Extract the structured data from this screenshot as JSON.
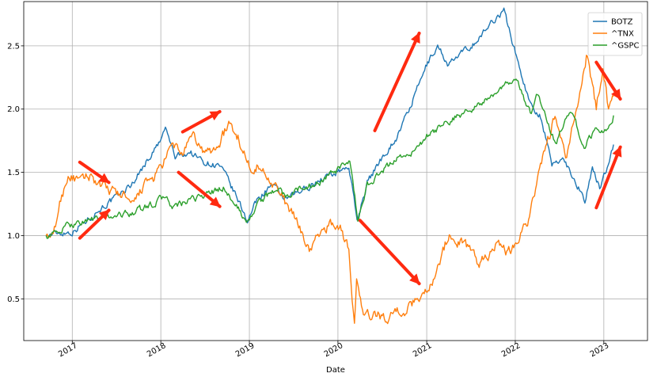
{
  "chart_data": {
    "type": "line",
    "title": "",
    "xlabel": "Date",
    "ylabel": "",
    "xlim": [
      "2016-06-15",
      "2023-06-30"
    ],
    "ylim": [
      0.17,
      2.85
    ],
    "grid": true,
    "legend_position": "top-right",
    "x_ticks": [
      "2017",
      "2018",
      "2019",
      "2020",
      "2021",
      "2022",
      "2023"
    ],
    "y_ticks": [
      "0.5",
      "1.0",
      "1.5",
      "2.0",
      "2.5"
    ],
    "series": [
      {
        "name": "BOTZ",
        "color": "#1f77b4",
        "points": [
          [
            "2016-09-15",
            1.0
          ],
          [
            "2016-11-01",
            1.02
          ],
          [
            "2017-01-01",
            1.03
          ],
          [
            "2017-03-01",
            1.12
          ],
          [
            "2017-05-01",
            1.22
          ],
          [
            "2017-07-01",
            1.3
          ],
          [
            "2017-09-01",
            1.4
          ],
          [
            "2017-11-01",
            1.58
          ],
          [
            "2018-01-01",
            1.75
          ],
          [
            "2018-01-20",
            1.85
          ],
          [
            "2018-03-01",
            1.62
          ],
          [
            "2018-05-01",
            1.66
          ],
          [
            "2018-07-01",
            1.58
          ],
          [
            "2018-09-01",
            1.55
          ],
          [
            "2018-10-01",
            1.45
          ],
          [
            "2018-11-15",
            1.28
          ],
          [
            "2018-12-24",
            1.12
          ],
          [
            "2019-02-01",
            1.28
          ],
          [
            "2019-04-01",
            1.4
          ],
          [
            "2019-06-01",
            1.28
          ],
          [
            "2019-08-01",
            1.35
          ],
          [
            "2019-10-01",
            1.42
          ],
          [
            "2019-12-01",
            1.48
          ],
          [
            "2020-02-15",
            1.55
          ],
          [
            "2020-03-20",
            1.12
          ],
          [
            "2020-05-01",
            1.42
          ],
          [
            "2020-07-01",
            1.62
          ],
          [
            "2020-09-01",
            1.78
          ],
          [
            "2020-11-01",
            2.05
          ],
          [
            "2021-01-01",
            2.35
          ],
          [
            "2021-02-15",
            2.5
          ],
          [
            "2021-04-01",
            2.35
          ],
          [
            "2021-06-01",
            2.45
          ],
          [
            "2021-08-01",
            2.55
          ],
          [
            "2021-10-01",
            2.7
          ],
          [
            "2021-11-15",
            2.78
          ],
          [
            "2022-01-01",
            2.45
          ],
          [
            "2022-03-01",
            2.05
          ],
          [
            "2022-04-15",
            1.95
          ],
          [
            "2022-06-01",
            1.55
          ],
          [
            "2022-07-15",
            1.62
          ],
          [
            "2022-09-01",
            1.45
          ],
          [
            "2022-10-15",
            1.28
          ],
          [
            "2022-11-15",
            1.52
          ],
          [
            "2022-12-15",
            1.38
          ],
          [
            "2023-01-15",
            1.55
          ],
          [
            "2023-02-10",
            1.72
          ]
        ]
      },
      {
        "name": "^TNX",
        "color": "#ff7f0e",
        "points": [
          [
            "2016-09-15",
            1.0
          ],
          [
            "2016-10-15",
            0.98
          ],
          [
            "2016-11-10",
            1.25
          ],
          [
            "2016-12-15",
            1.48
          ],
          [
            "2017-02-01",
            1.42
          ],
          [
            "2017-03-15",
            1.48
          ],
          [
            "2017-05-01",
            1.38
          ],
          [
            "2017-06-15",
            1.35
          ],
          [
            "2017-08-01",
            1.32
          ],
          [
            "2017-09-08",
            1.22
          ],
          [
            "2017-10-15",
            1.38
          ],
          [
            "2017-12-01",
            1.45
          ],
          [
            "2018-01-15",
            1.58
          ],
          [
            "2018-02-20",
            1.72
          ],
          [
            "2018-04-01",
            1.65
          ],
          [
            "2018-05-15",
            1.78
          ],
          [
            "2018-07-01",
            1.65
          ],
          [
            "2018-08-15",
            1.68
          ],
          [
            "2018-10-08",
            1.88
          ],
          [
            "2018-11-15",
            1.78
          ],
          [
            "2018-12-31",
            1.55
          ],
          [
            "2019-02-01",
            1.55
          ],
          [
            "2019-04-01",
            1.45
          ],
          [
            "2019-06-01",
            1.25
          ],
          [
            "2019-08-01",
            1.05
          ],
          [
            "2019-09-05",
            0.88
          ],
          [
            "2019-10-15",
            1.0
          ],
          [
            "2019-12-01",
            1.1
          ],
          [
            "2020-01-15",
            1.05
          ],
          [
            "2020-02-15",
            0.88
          ],
          [
            "2020-03-09",
            0.3
          ],
          [
            "2020-03-18",
            0.65
          ],
          [
            "2020-04-15",
            0.35
          ],
          [
            "2020-06-01",
            0.38
          ],
          [
            "2020-07-15",
            0.35
          ],
          [
            "2020-09-01",
            0.4
          ],
          [
            "2020-10-15",
            0.42
          ],
          [
            "2020-12-01",
            0.52
          ],
          [
            "2021-01-15",
            0.6
          ],
          [
            "2021-02-15",
            0.75
          ],
          [
            "2021-03-31",
            1.0
          ],
          [
            "2021-05-15",
            0.95
          ],
          [
            "2021-07-01",
            0.9
          ],
          [
            "2021-08-01",
            0.78
          ],
          [
            "2021-09-15",
            0.85
          ],
          [
            "2021-10-20",
            0.98
          ],
          [
            "2021-12-01",
            0.85
          ],
          [
            "2022-01-15",
            1.0
          ],
          [
            "2022-03-01",
            1.15
          ],
          [
            "2022-04-15",
            1.55
          ],
          [
            "2022-06-14",
            1.95
          ],
          [
            "2022-08-01",
            1.6
          ],
          [
            "2022-09-15",
            2.05
          ],
          [
            "2022-10-21",
            2.42
          ],
          [
            "2022-11-15",
            2.2
          ],
          [
            "2022-12-01",
            2.0
          ],
          [
            "2022-12-28",
            2.35
          ],
          [
            "2023-01-20",
            2.0
          ],
          [
            "2023-02-10",
            2.1
          ]
        ]
      },
      {
        "name": "^GSPC",
        "color": "#2ca02c",
        "points": [
          [
            "2016-09-15",
            1.0
          ],
          [
            "2016-11-01",
            1.02
          ],
          [
            "2016-12-15",
            1.08
          ],
          [
            "2017-03-01",
            1.12
          ],
          [
            "2017-06-01",
            1.15
          ],
          [
            "2017-09-01",
            1.18
          ],
          [
            "2017-12-01",
            1.25
          ],
          [
            "2018-01-26",
            1.32
          ],
          [
            "2018-02-08",
            1.22
          ],
          [
            "2018-04-01",
            1.25
          ],
          [
            "2018-06-01",
            1.3
          ],
          [
            "2018-09-20",
            1.38
          ],
          [
            "2018-10-15",
            1.3
          ],
          [
            "2018-12-24",
            1.1
          ],
          [
            "2019-02-01",
            1.25
          ],
          [
            "2019-05-01",
            1.38
          ],
          [
            "2019-06-03",
            1.3
          ],
          [
            "2019-08-01",
            1.38
          ],
          [
            "2019-10-01",
            1.4
          ],
          [
            "2020-01-01",
            1.52
          ],
          [
            "2020-02-19",
            1.58
          ],
          [
            "2020-03-23",
            1.12
          ],
          [
            "2020-05-01",
            1.4
          ],
          [
            "2020-07-01",
            1.5
          ],
          [
            "2020-09-01",
            1.62
          ],
          [
            "2020-11-01",
            1.65
          ],
          [
            "2021-01-01",
            1.78
          ],
          [
            "2021-04-01",
            1.9
          ],
          [
            "2021-07-01",
            2.0
          ],
          [
            "2021-10-01",
            2.1
          ],
          [
            "2021-12-31",
            2.25
          ],
          [
            "2022-03-08",
            1.95
          ],
          [
            "2022-03-29",
            2.15
          ],
          [
            "2022-06-16",
            1.72
          ],
          [
            "2022-08-16",
            2.0
          ],
          [
            "2022-10-12",
            1.7
          ],
          [
            "2022-12-01",
            1.85
          ],
          [
            "2023-01-01",
            1.8
          ],
          [
            "2023-02-10",
            1.95
          ]
        ]
      }
    ],
    "annotations": [
      {
        "type": "arrow",
        "color": "#ff2a10",
        "from": [
          "2017-02-01",
          1.58
        ],
        "to": [
          "2017-06-01",
          1.42
        ]
      },
      {
        "type": "arrow",
        "color": "#ff2a10",
        "from": [
          "2017-02-01",
          0.98
        ],
        "to": [
          "2017-06-01",
          1.2
        ]
      },
      {
        "type": "arrow",
        "color": "#ff2a10",
        "from": [
          "2018-04-01",
          1.82
        ],
        "to": [
          "2018-09-01",
          1.98
        ]
      },
      {
        "type": "arrow",
        "color": "#ff2a10",
        "from": [
          "2018-03-15",
          1.5
        ],
        "to": [
          "2018-09-01",
          1.23
        ]
      },
      {
        "type": "arrow",
        "color": "#ff2a10",
        "from": [
          "2020-06-01",
          1.83
        ],
        "to": [
          "2020-12-01",
          2.6
        ]
      },
      {
        "type": "arrow",
        "color": "#ff2a10",
        "from": [
          "2020-04-01",
          1.12
        ],
        "to": [
          "2020-12-01",
          0.62
        ]
      },
      {
        "type": "arrow",
        "color": "#ff2a10",
        "from": [
          "2022-12-01",
          2.37
        ],
        "to": [
          "2023-03-10",
          2.08
        ]
      },
      {
        "type": "arrow",
        "color": "#ff2a10",
        "from": [
          "2022-12-01",
          1.22
        ],
        "to": [
          "2023-03-10",
          1.7
        ]
      }
    ]
  }
}
